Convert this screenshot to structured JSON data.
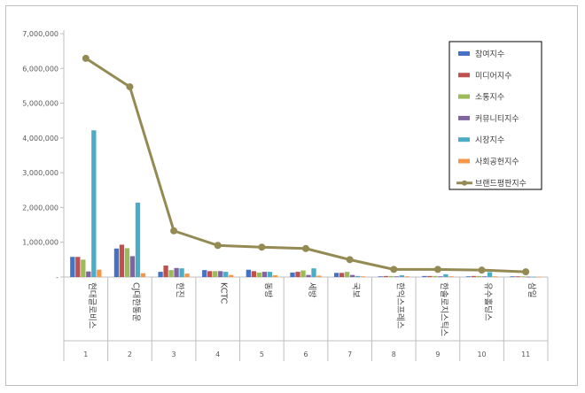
{
  "chart_data": {
    "type": "bar",
    "title": "",
    "xlabel": "",
    "ylabel": "",
    "ylim": [
      0,
      7000000
    ],
    "yticks": [
      "-",
      "1,000,000",
      "2,000,000",
      "3,000,000",
      "4,000,000",
      "5,000,000",
      "6,000,000",
      "7,000,000"
    ],
    "grid": false,
    "legend_position": "top-right",
    "categories": [
      "현대글로비스",
      "CJ대한통운",
      "한진",
      "KCTC",
      "동방",
      "세방",
      "국보",
      "한익스프레스",
      "한솔로지스틱스",
      "유수홀딩스",
      "삼일"
    ],
    "indices": [
      "1",
      "2",
      "3",
      "4",
      "5",
      "6",
      "7",
      "8",
      "9",
      "10",
      "11"
    ],
    "series": [
      {
        "name": "참여지수",
        "color": "#4472c4",
        "values": [
          580000,
          820000,
          150000,
          200000,
          210000,
          130000,
          120000,
          20000,
          30000,
          20000,
          20000
        ]
      },
      {
        "name": "미디어지수",
        "color": "#c0504d",
        "values": [
          580000,
          930000,
          330000,
          170000,
          170000,
          150000,
          120000,
          30000,
          30000,
          30000,
          20000
        ]
      },
      {
        "name": "소통지수",
        "color": "#9bbb59",
        "values": [
          500000,
          830000,
          200000,
          170000,
          130000,
          190000,
          150000,
          30000,
          30000,
          30000,
          20000
        ]
      },
      {
        "name": "커뮤니티지수",
        "color": "#8064a2",
        "values": [
          160000,
          600000,
          260000,
          170000,
          150000,
          60000,
          60000,
          20000,
          20000,
          20000,
          10000
        ]
      },
      {
        "name": "시장지수",
        "color": "#4bacc6",
        "values": [
          4220000,
          2140000,
          250000,
          150000,
          150000,
          250000,
          30000,
          50000,
          80000,
          140000,
          10000
        ]
      },
      {
        "name": "사회공헌지수",
        "color": "#f79646",
        "values": [
          210000,
          110000,
          100000,
          60000,
          50000,
          40000,
          20000,
          20000,
          20000,
          20000,
          10000
        ]
      }
    ],
    "line": {
      "name": "브랜드평판지수",
      "color": "#948a54",
      "values": [
        6290000,
        5470000,
        1330000,
        910000,
        860000,
        820000,
        500000,
        220000,
        220000,
        200000,
        150000
      ]
    }
  }
}
